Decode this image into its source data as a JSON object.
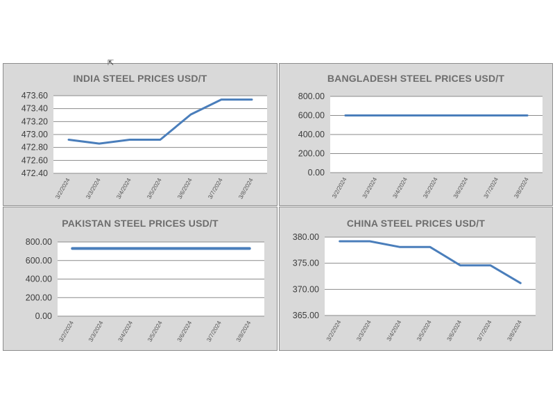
{
  "chart_data": [
    {
      "type": "line",
      "title": "INDIA STEEL PRICES USD/T",
      "categories": [
        "3/2/2024",
        "3/3/2024",
        "3/4/2024",
        "3/5/2024",
        "3/6/2024",
        "3/7/2024",
        "3/8/2024"
      ],
      "series": [
        {
          "values": [
            472.92,
            472.86,
            472.92,
            472.92,
            473.31,
            473.54,
            473.54
          ]
        }
      ],
      "ylim": [
        472.4,
        473.6
      ],
      "yticks": [
        "473.60",
        "473.40",
        "473.20",
        "473.00",
        "472.80",
        "472.60",
        "472.40"
      ],
      "grid": true,
      "color": "#4a7ebb"
    },
    {
      "type": "line",
      "title": "BANGLADESH STEEL PRICES USD/T",
      "categories": [
        "3/2/2024",
        "3/3/2024",
        "3/4/2024",
        "3/5/2024",
        "3/6/2024",
        "3/7/2024",
        "3/8/2024"
      ],
      "series": [
        {
          "values": [
            600,
            600,
            600,
            600,
            600,
            600,
            600
          ]
        }
      ],
      "ylim": [
        0,
        800
      ],
      "yticks": [
        "800.00",
        "600.00",
        "400.00",
        "200.00",
        "0.00"
      ],
      "grid": true,
      "color": "#4a7ebb"
    },
    {
      "type": "line",
      "title": "PAKISTAN STEEL PRICES USD/T",
      "categories": [
        "3/2/2024",
        "3/3/2024",
        "3/4/2024",
        "3/5/2024",
        "3/6/2024",
        "3/7/2024",
        "3/8/2024"
      ],
      "series": [
        {
          "values": [
            730,
            730,
            730,
            730,
            730,
            730,
            730
          ]
        }
      ],
      "ylim": [
        0,
        800
      ],
      "yticks": [
        "800.00",
        "600.00",
        "400.00",
        "200.00",
        "0.00"
      ],
      "grid": true,
      "color": "#4a7ebb"
    },
    {
      "type": "line",
      "title": "CHINA STEEL PRICES USD/T",
      "categories": [
        "3/2/2024",
        "3/3/2024",
        "3/4/2024",
        "3/5/2024",
        "3/6/2024",
        "3/7/2024",
        "3/8/2024"
      ],
      "series": [
        {
          "values": [
            379.2,
            379.2,
            378.1,
            378.1,
            374.6,
            374.6,
            371.2
          ]
        }
      ],
      "ylim": [
        365,
        380
      ],
      "yticks": [
        "380.00",
        "375.00",
        "370.00",
        "365.00"
      ],
      "grid": true,
      "color": "#4a7ebb"
    }
  ]
}
